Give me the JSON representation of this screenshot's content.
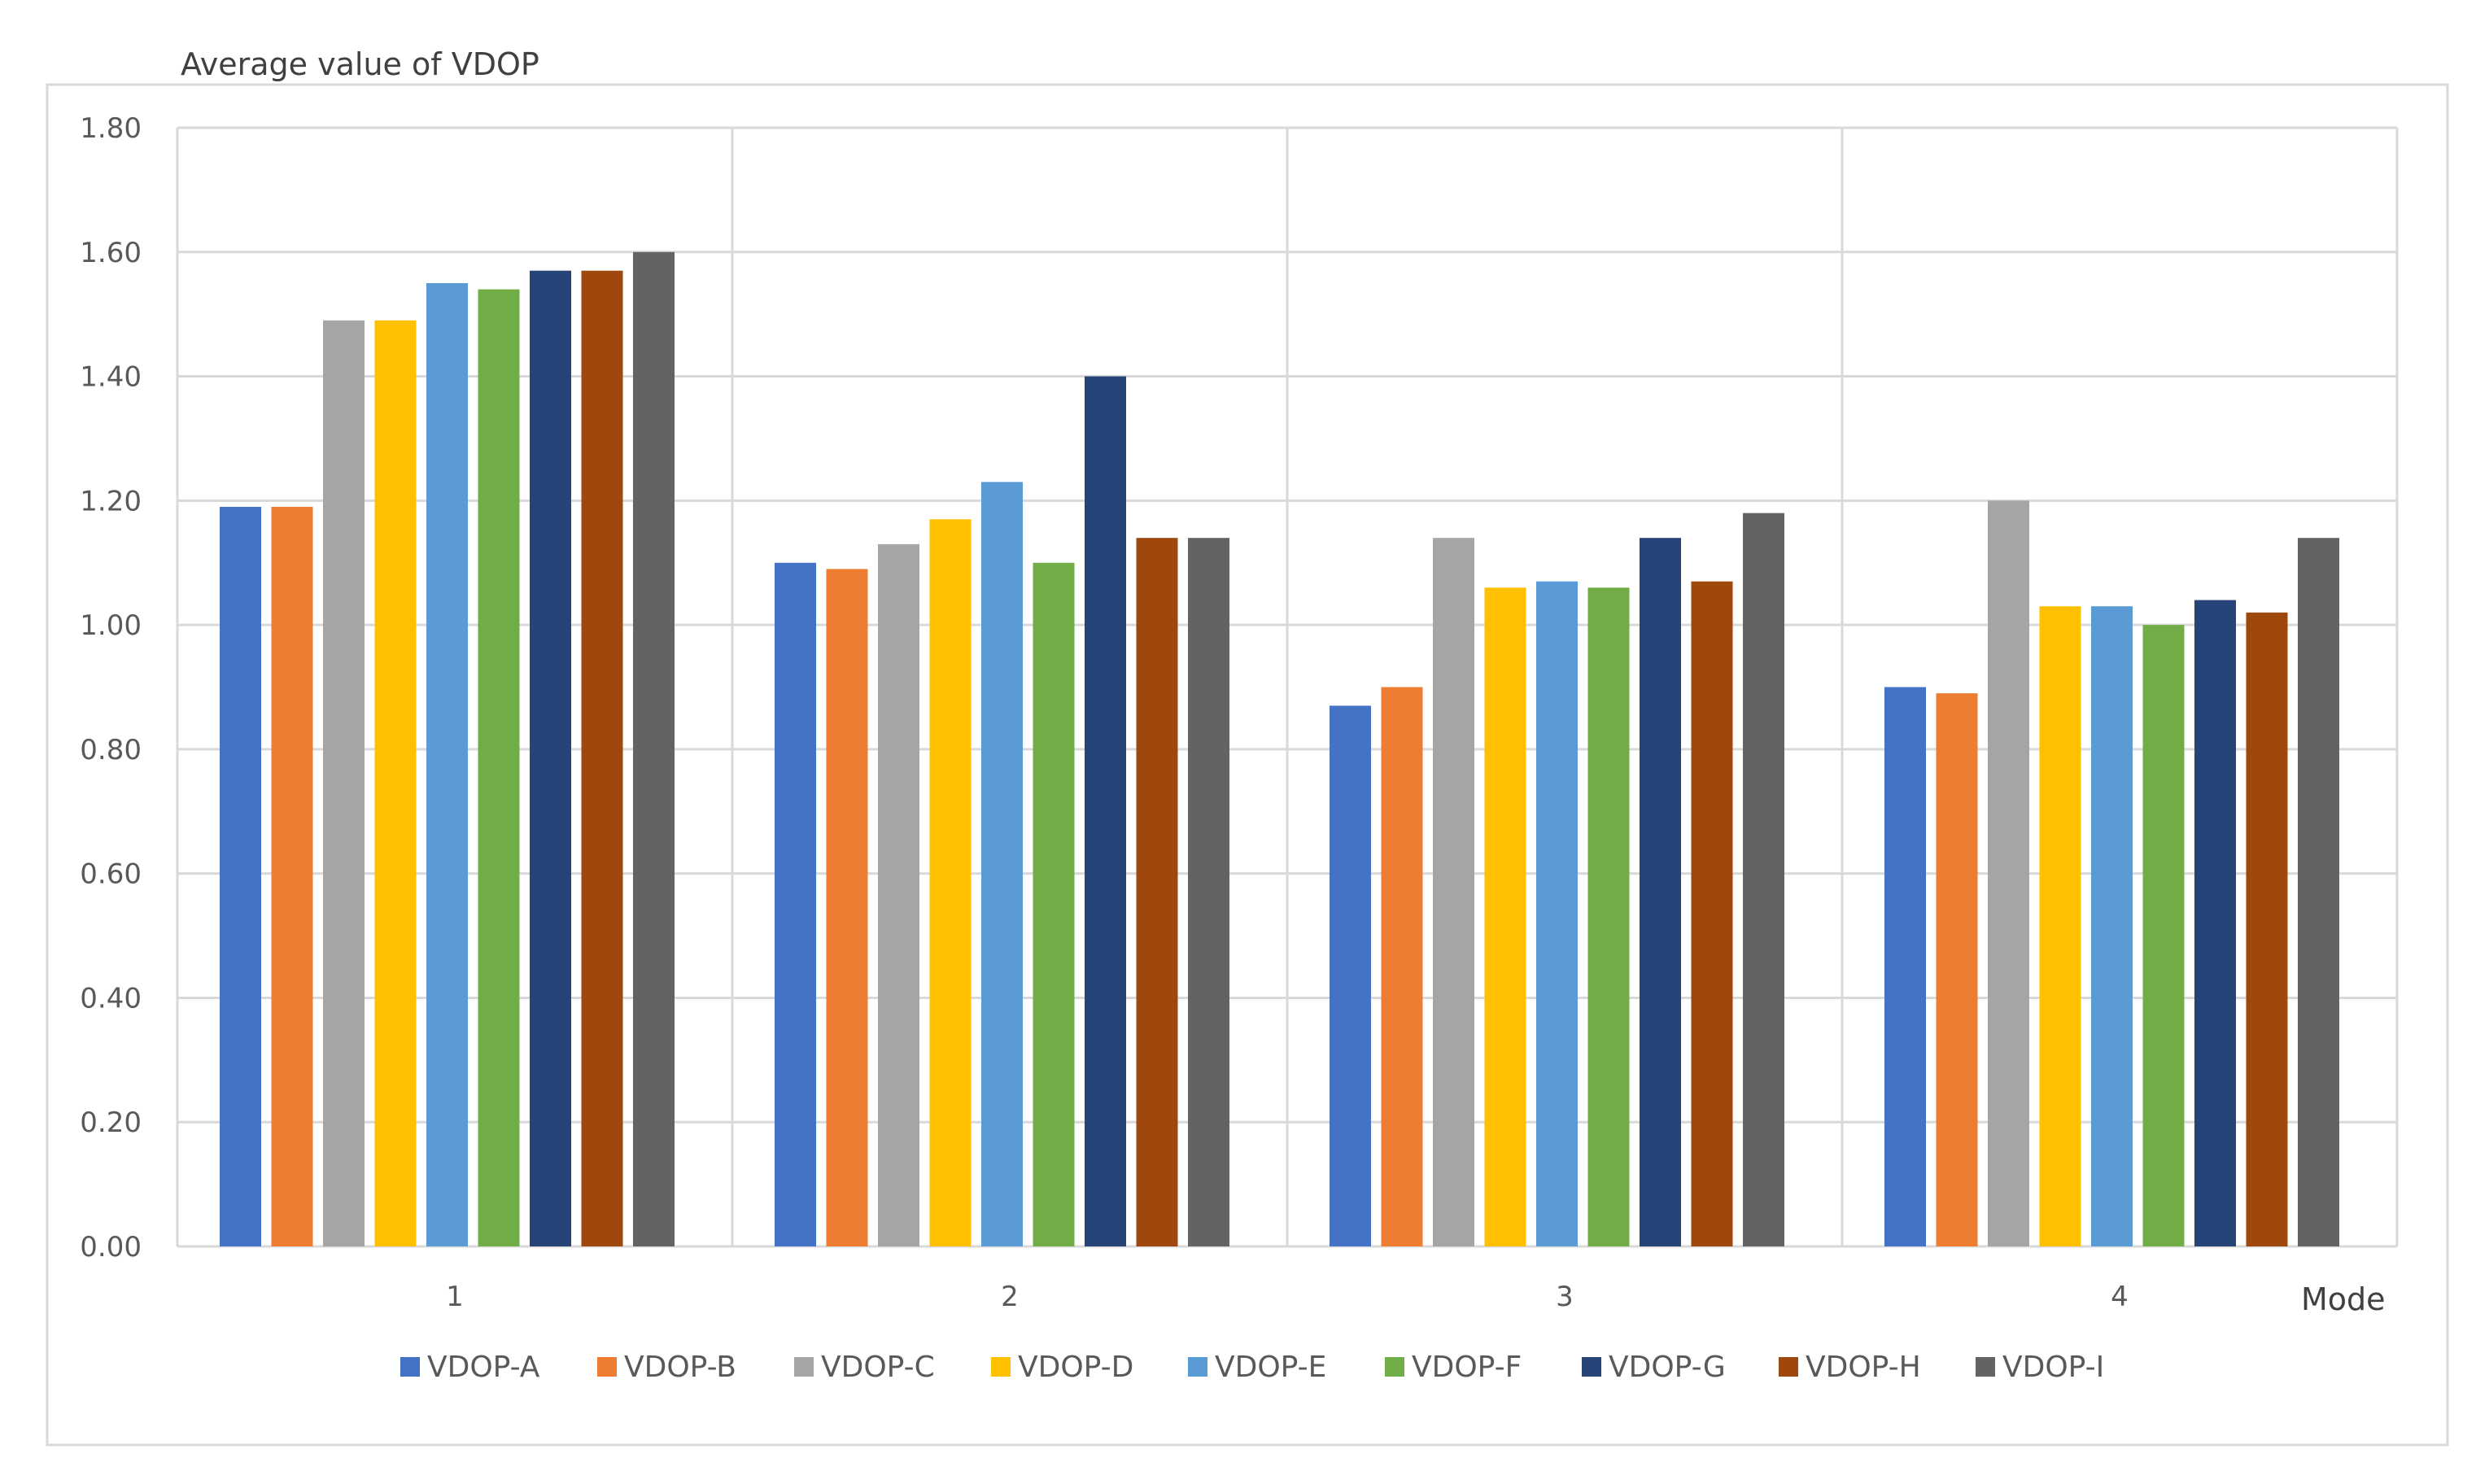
{
  "chart_data": {
    "type": "bar",
    "title": "",
    "ylabel": "Average value of VDOP",
    "xlabel": "Mode",
    "ylim": [
      0,
      1.8
    ],
    "yticks": [
      "0.00",
      "0.20",
      "0.40",
      "0.60",
      "0.80",
      "1.00",
      "1.20",
      "1.40",
      "1.60",
      "1.80"
    ],
    "categories": [
      "1",
      "2",
      "3",
      "4"
    ],
    "grid": "both",
    "legend_position": "bottom",
    "series": [
      {
        "name": "VDOP-A",
        "color": "#4472C4",
        "values": [
          1.19,
          1.1,
          0.87,
          0.9
        ]
      },
      {
        "name": "VDOP-B",
        "color": "#ED7D31",
        "values": [
          1.19,
          1.09,
          0.9,
          0.89
        ]
      },
      {
        "name": "VDOP-C",
        "color": "#A5A5A5",
        "values": [
          1.49,
          1.13,
          1.14,
          1.2
        ]
      },
      {
        "name": "VDOP-D",
        "color": "#FFC000",
        "values": [
          1.49,
          1.17,
          1.06,
          1.03
        ]
      },
      {
        "name": "VDOP-E",
        "color": "#5B9BD5",
        "values": [
          1.55,
          1.23,
          1.07,
          1.03
        ]
      },
      {
        "name": "VDOP-F",
        "color": "#70AD47",
        "values": [
          1.54,
          1.1,
          1.06,
          1.0
        ]
      },
      {
        "name": "VDOP-G",
        "color": "#264478",
        "values": [
          1.57,
          1.4,
          1.14,
          1.04
        ]
      },
      {
        "name": "VDOP-H",
        "color": "#9E480E",
        "values": [
          1.57,
          1.14,
          1.07,
          1.02
        ]
      },
      {
        "name": "VDOP-I",
        "color": "#636363",
        "values": [
          1.6,
          1.14,
          1.18,
          1.14
        ]
      }
    ]
  }
}
